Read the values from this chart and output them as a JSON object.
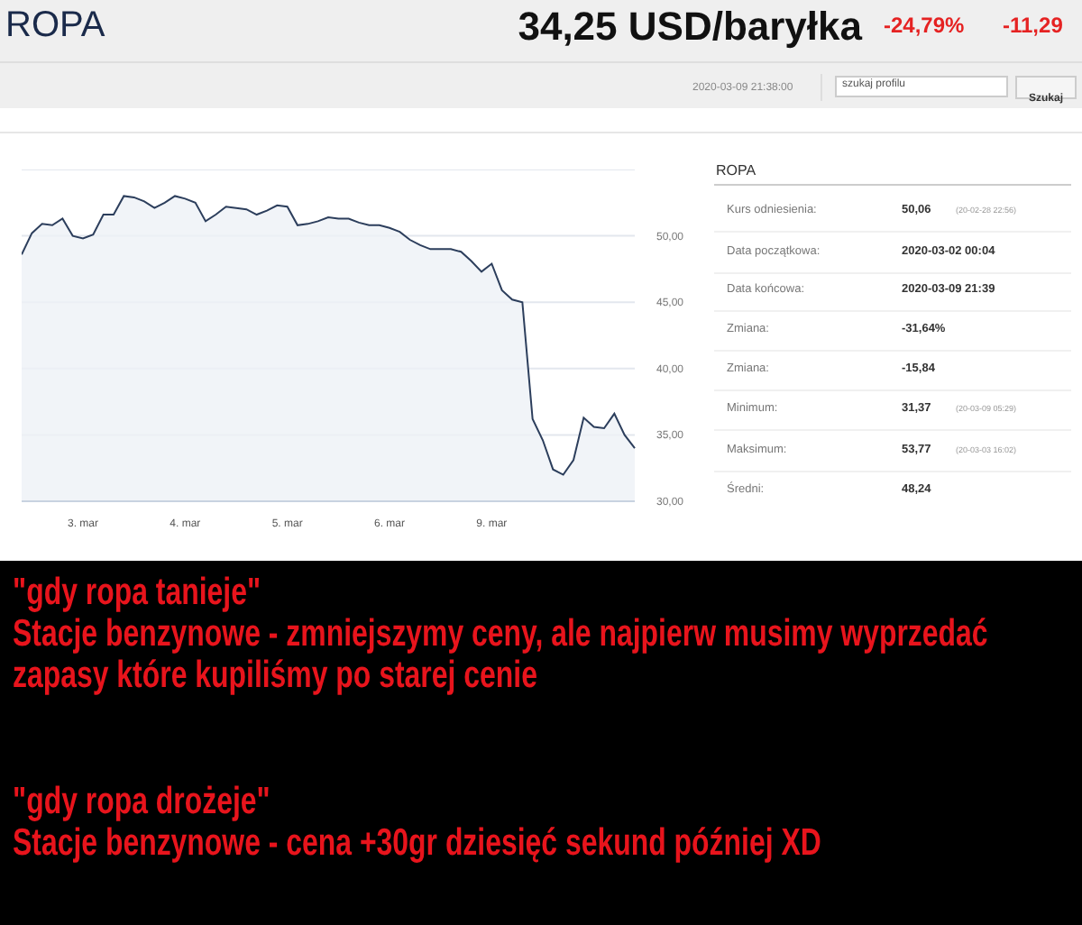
{
  "chart_data": {
    "type": "area",
    "title": "ROPA",
    "subtitle": "34,25 USD/baryłka",
    "annotations": [
      "-24,79%",
      "-11,29",
      "2020-03-09 21:38:00",
      "szukaj profilu",
      "Szukaj",
      "ROPA",
      "Kurs odniesienia:",
      "50,06",
      "(20-02-28 22:56)",
      "Data początkowa:",
      "2020-03-02 00:04",
      "Data końcowa:",
      "2020-03-09 21:39",
      "Zmiana:",
      "-31,64%",
      "Zmiana:",
      "-15,84",
      "Minimum:",
      "31,37",
      "(20-03-09 05:29)",
      "Maksimum:",
      "53,77",
      "(20-03-03 16:02)",
      "Średni:",
      "48,24",
      "\"gdy ropa tanieje\"",
      "Stacje benzynowe - zmniejszymy ceny, ale najpierw musimy wyprzedać zapasy które kupiliśmy po starej cenie",
      "\"gdy ropa drożeje\"",
      "Stacje benzynowe - cena +30gr dziesięć sekund później XD"
    ],
    "categories": [
      null,
      null,
      null,
      null,
      null,
      null,
      "3. mar",
      null,
      null,
      null,
      null,
      null,
      null,
      null,
      null,
      null,
      "4. mar",
      null,
      null,
      null,
      null,
      null,
      null,
      null,
      null,
      null,
      "5. mar",
      null,
      null,
      null,
      null,
      null,
      null,
      null,
      null,
      null,
      "6. mar",
      null,
      null,
      null,
      null,
      null,
      null,
      null,
      null,
      null,
      "9. mar",
      null,
      null,
      null,
      null,
      null,
      null,
      null,
      null,
      null,
      null,
      null,
      null,
      null,
      null
    ],
    "series": [
      {
        "color": "#2c3e5c",
        "values": [
          48.6,
          50.2,
          50.9,
          50.8,
          51.3,
          50.0,
          49.8,
          50.1,
          51.6,
          51.6,
          53.0,
          52.9,
          52.6,
          52.1,
          52.5,
          53.0,
          52.8,
          52.5,
          51.1,
          51.6,
          52.2,
          52.1,
          52.0,
          51.6,
          51.9,
          52.3,
          52.2,
          50.8,
          50.9,
          51.1,
          51.4,
          51.3,
          51.3,
          51.0,
          50.8,
          50.8,
          50.6,
          50.3,
          49.7,
          49.3,
          49.0,
          49.0,
          49.0,
          48.8,
          48.1,
          47.3,
          47.9,
          45.9,
          45.2,
          45.0,
          36.2,
          34.6,
          32.4,
          32.0,
          33.1,
          36.3,
          35.6,
          35.5,
          36.6,
          35.0,
          34.0
        ]
      }
    ],
    "ylim": [
      30,
      55
    ],
    "yticks": [
      {
        "value": 30,
        "label": "30,00"
      },
      {
        "value": 35,
        "label": "35,00"
      },
      {
        "value": 40,
        "label": "40,00"
      },
      {
        "value": 45,
        "label": "45,00"
      },
      {
        "value": 50,
        "label": "50,00"
      },
      {
        "value": 55,
        "label": null
      }
    ],
    "grid": "y"
  }
}
